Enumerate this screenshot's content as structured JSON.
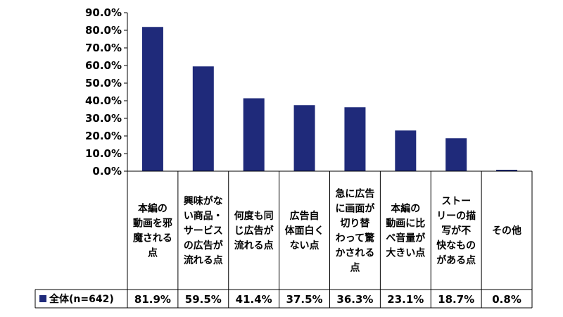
{
  "chart_data": {
    "type": "bar",
    "categories": [
      "本編の動画を邪魔される点",
      "興味がない商品・サービスの広告が流れる点",
      "何度も同じ広告が流れる点",
      "広告自体面白くない点",
      "急に広告に画面が切り替わって驚かされる点",
      "本編の動画に比べ音量が大きい点",
      "ストーリーの描写が不快なものがある点",
      "その他"
    ],
    "category_lines": [
      [
        "本編の",
        "動画を邪",
        "魔される",
        "点"
      ],
      [
        "興味がな",
        "い商品・",
        "サービス",
        "の広告が",
        "流れる点"
      ],
      [
        "何度も同",
        "じ広告が",
        "流れる点"
      ],
      [
        "広告自",
        "体面白く",
        "ない点"
      ],
      [
        "急に広告",
        "に画面が",
        "切り替",
        "わって驚",
        "かされる",
        "点"
      ],
      [
        "本編の",
        "動画に比",
        "べ音量が",
        "大きい点"
      ],
      [
        "ストー",
        "リーの描",
        "写が不",
        "快なもの",
        "がある点"
      ],
      [
        "その他"
      ]
    ],
    "series": [
      {
        "name": "全体(n=642)",
        "values": [
          81.9,
          59.5,
          41.4,
          37.5,
          36.3,
          23.1,
          18.7,
          0.8
        ],
        "labels": [
          "81.9%",
          "59.5%",
          "41.4%",
          "37.5%",
          "36.3%",
          "23.1%",
          "18.7%",
          "0.8%"
        ],
        "color": "#1f2a7a"
      }
    ],
    "ylim": [
      0,
      90
    ],
    "yticks": [
      "0.0%",
      "10.0%",
      "20.0%",
      "30.0%",
      "40.0%",
      "50.0%",
      "60.0%",
      "70.0%",
      "80.0%",
      "90.0%"
    ],
    "grid": false,
    "legend": "data-table-left",
    "title": "",
    "xlabel": "",
    "ylabel": ""
  }
}
